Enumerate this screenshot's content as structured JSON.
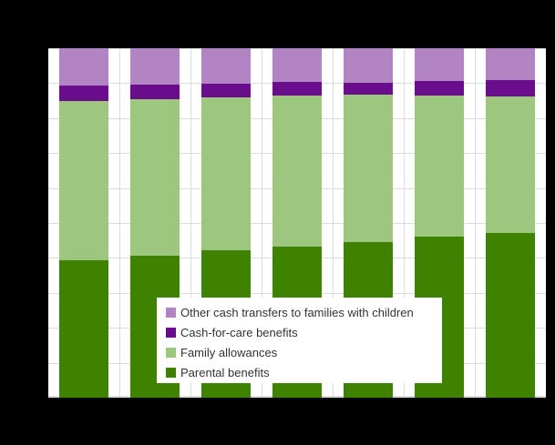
{
  "canvas": {
    "background": "#000000"
  },
  "plot": {
    "background": "#ffffff",
    "gridline_color": "#dcdcdc"
  },
  "legend": {
    "position": "overlay-bottom-center",
    "background": "#ffffff",
    "text_color": "#333333",
    "items": [
      {
        "label": "Other cash transfers to families with children",
        "color": "#b284c4"
      },
      {
        "label": "Cash-for-care benefits",
        "color": "#690d8c"
      },
      {
        "label": "Family allowances",
        "color": "#9dc67e"
      },
      {
        "label": "Parental benefits",
        "color": "#3e8200"
      }
    ]
  },
  "chart_data": {
    "type": "bar",
    "stacked": true,
    "stacking": "percent",
    "n_categories": 7,
    "categories": [
      "",
      "",
      "",
      "",
      "",
      "",
      ""
    ],
    "x_axis_labels_visible": false,
    "y_axis_labels_visible": false,
    "title_visible": false,
    "ylim": [
      0,
      100
    ],
    "bar_width_frac": 0.68,
    "grid": {
      "horizontal_interval_pct": 10,
      "vertical": "category-boundaries",
      "color": "#dcdcdc"
    },
    "series": [
      {
        "key": "parental-benefits",
        "name": "Parental benefits",
        "color": "#3e8200",
        "values": [
          39.2,
          40.7,
          42.3,
          43.3,
          44.4,
          46.0,
          47.0
        ]
      },
      {
        "key": "family-allowances",
        "name": "Family allowances",
        "color": "#9dc67e",
        "values": [
          45.7,
          44.6,
          43.7,
          43.1,
          42.3,
          40.4,
          39.2
        ]
      },
      {
        "key": "cash-for-care-benefits",
        "name": "Cash-for-care benefits",
        "color": "#690d8c",
        "values": [
          4.4,
          4.3,
          3.8,
          3.9,
          3.5,
          4.1,
          4.6
        ]
      },
      {
        "key": "other-cash-transfers",
        "name": "Other cash transfers to families with children",
        "color": "#b284c4",
        "values": [
          10.7,
          10.4,
          10.2,
          9.7,
          9.8,
          9.5,
          9.2
        ]
      }
    ]
  }
}
